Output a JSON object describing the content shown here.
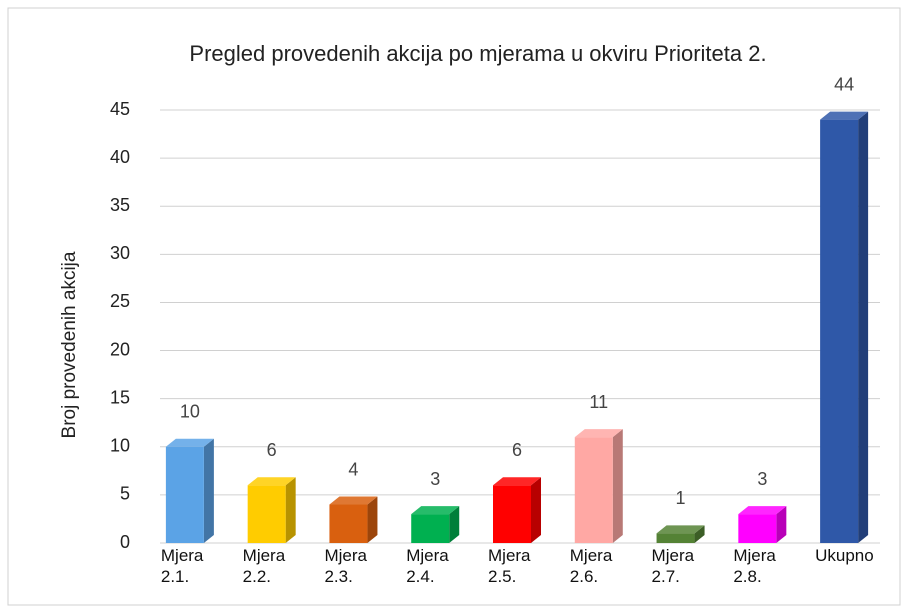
{
  "chart_data": {
    "type": "bar3d",
    "title": "Pregled provedenih akcija po mjerama u okviru Prioriteta 2.",
    "ylabel": "Broj provedenih akcija",
    "categories": [
      "Mjera 2.1.",
      "Mjera 2.2.",
      "Mjera 2.3.",
      "Mjera 2.4.",
      "Mjera 2.5.",
      "Mjera 2.6.",
      "Mjera 2.7.",
      "Mjera 2.8.",
      "Ukupno"
    ],
    "values": [
      10,
      6,
      4,
      3,
      6,
      11,
      1,
      3,
      44
    ],
    "colors": [
      "#5ba3e6",
      "#ffcc00",
      "#d9600f",
      "#00b050",
      "#ff0000",
      "#ffa8a4",
      "#548235",
      "#ff00ff",
      "#2f58a8"
    ],
    "ylim": [
      0,
      45
    ],
    "yticks": [
      0,
      5,
      10,
      15,
      20,
      25,
      30,
      35,
      40,
      45
    ],
    "grid": true
  }
}
